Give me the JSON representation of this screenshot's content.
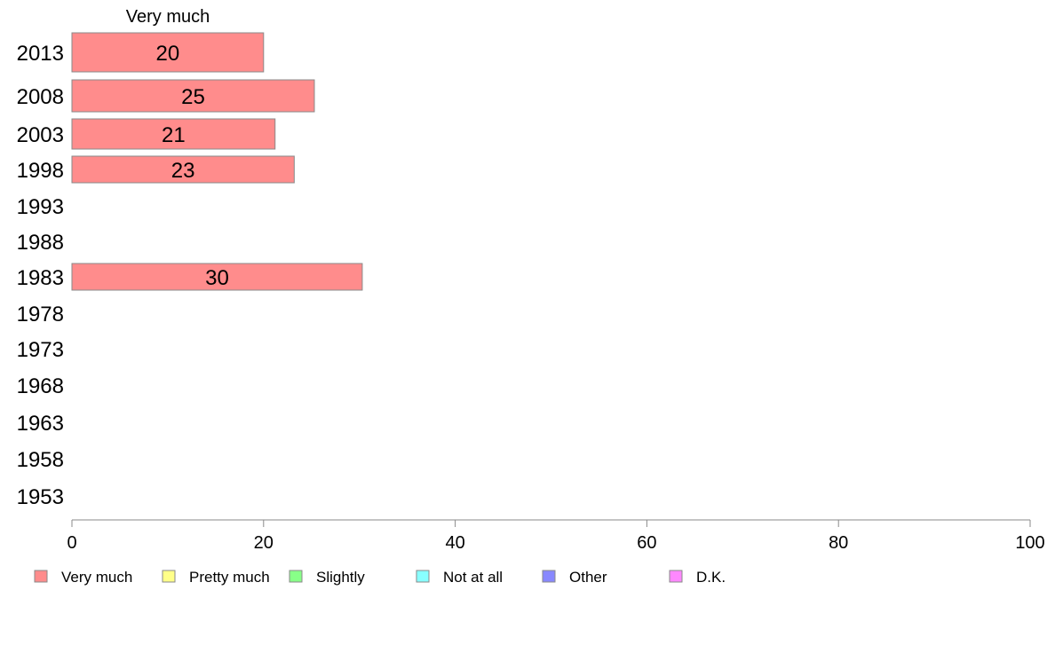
{
  "chart_data": {
    "type": "bar",
    "orientation": "horizontal",
    "series_title": "Very much",
    "categories": [
      "2013",
      "2008",
      "2003",
      "1998",
      "1993",
      "1988",
      "1983",
      "1978",
      "1973",
      "1968",
      "1963",
      "1958",
      "1953"
    ],
    "series": [
      {
        "name": "Very much",
        "color": "#ff8c8c",
        "values": [
          20,
          25.3,
          21.2,
          23.2,
          null,
          null,
          30.3,
          null,
          null,
          null,
          null,
          null,
          null
        ],
        "labels": [
          "20",
          "25",
          "21",
          "23",
          "",
          "",
          "30",
          "",
          "",
          "",
          "",
          "",
          ""
        ]
      }
    ],
    "xlim": [
      0,
      100
    ],
    "xticks": [
      0,
      20,
      40,
      60,
      80,
      100
    ],
    "grid": false,
    "legend": {
      "placement": "bottom",
      "items": [
        {
          "label": "Very much",
          "color": "#ff8c8c"
        },
        {
          "label": "Pretty much",
          "color": "#ffff88"
        },
        {
          "label": "Slightly",
          "color": "#88ff88"
        },
        {
          "label": "Not at all",
          "color": "#88ffff"
        },
        {
          "label": "Other",
          "color": "#8888ff"
        },
        {
          "label": "D.K.",
          "color": "#ff88ff"
        }
      ]
    }
  }
}
